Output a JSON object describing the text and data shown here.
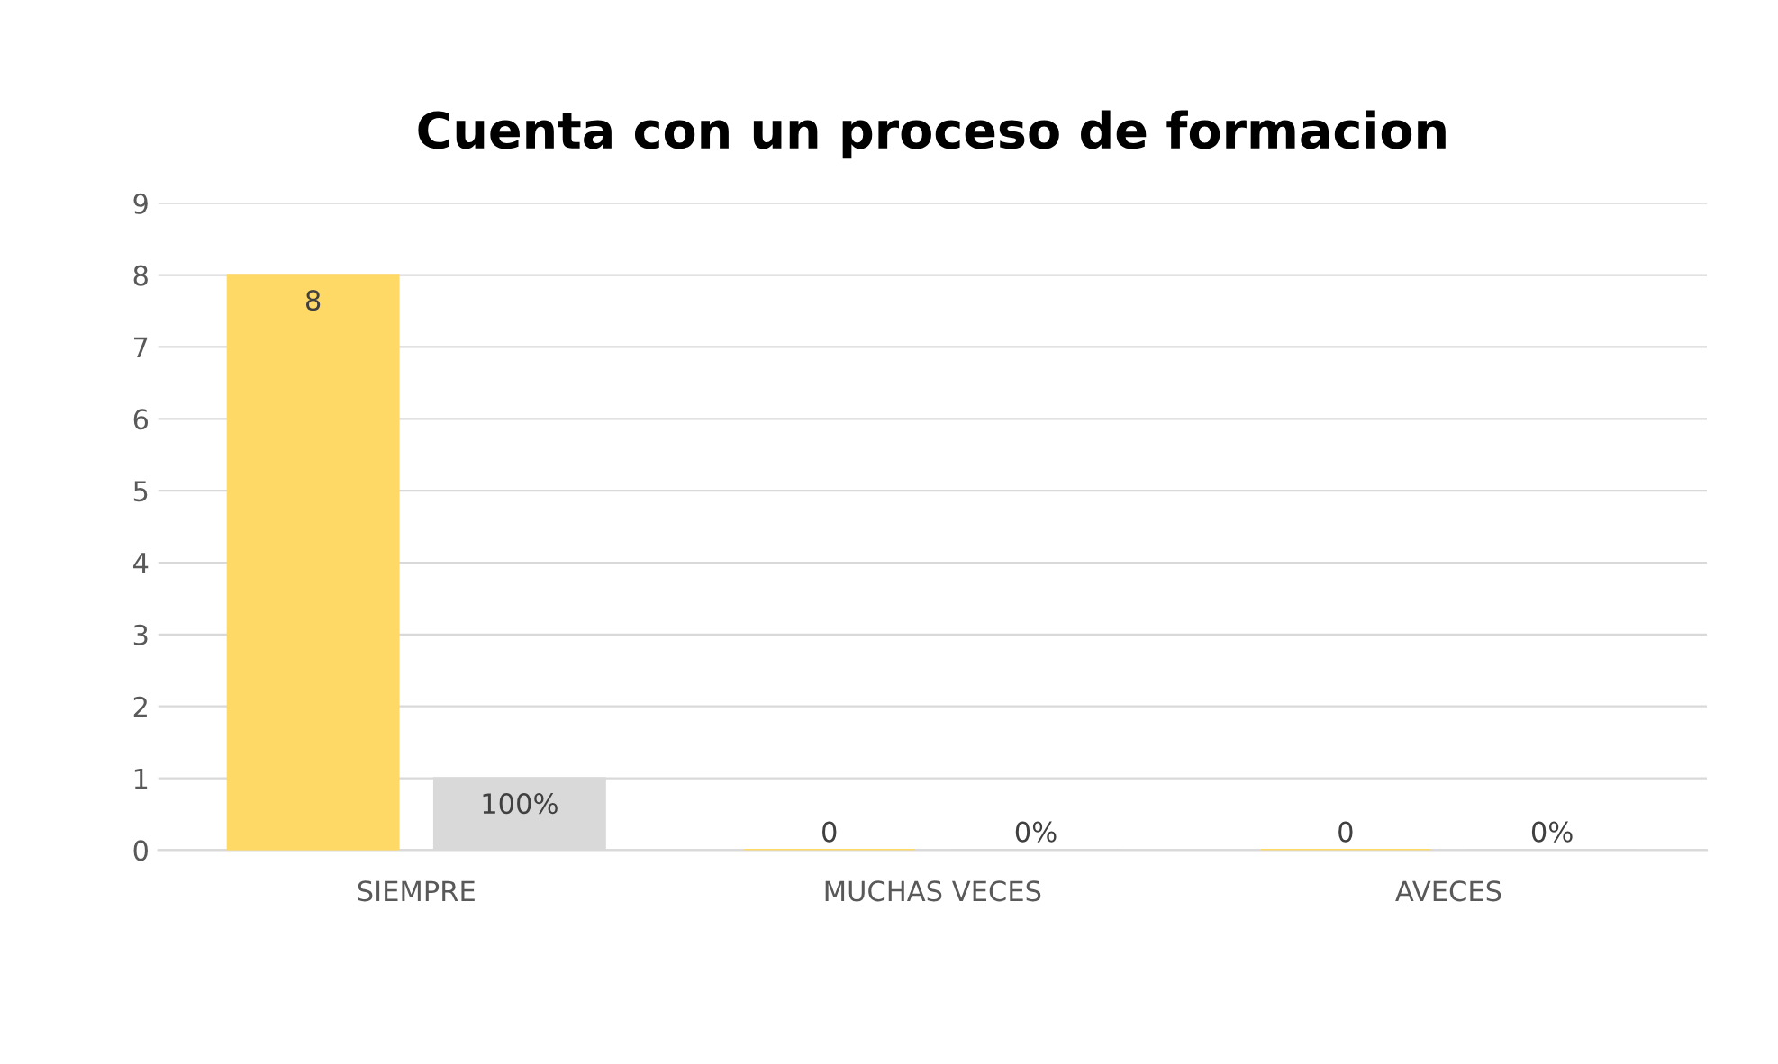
{
  "chart_data": {
    "type": "bar",
    "title": "Cuenta con un proceso de formacion",
    "categories": [
      "SIEMPRE",
      "MUCHAS VECES",
      "AVECES"
    ],
    "series": [
      {
        "color": "#ffd966",
        "values": [
          8,
          0,
          0
        ],
        "value_labels": [
          "8",
          "0",
          "0"
        ]
      },
      {
        "color": "#d9d9d9",
        "values": [
          1,
          0,
          0
        ],
        "value_labels": [
          "100%",
          "0%",
          "0%"
        ]
      }
    ],
    "ylim": [
      0,
      9
    ],
    "yticks": [
      0,
      1,
      2,
      3,
      4,
      5,
      6,
      7,
      8,
      9
    ],
    "grid": "y",
    "legend": false
  }
}
